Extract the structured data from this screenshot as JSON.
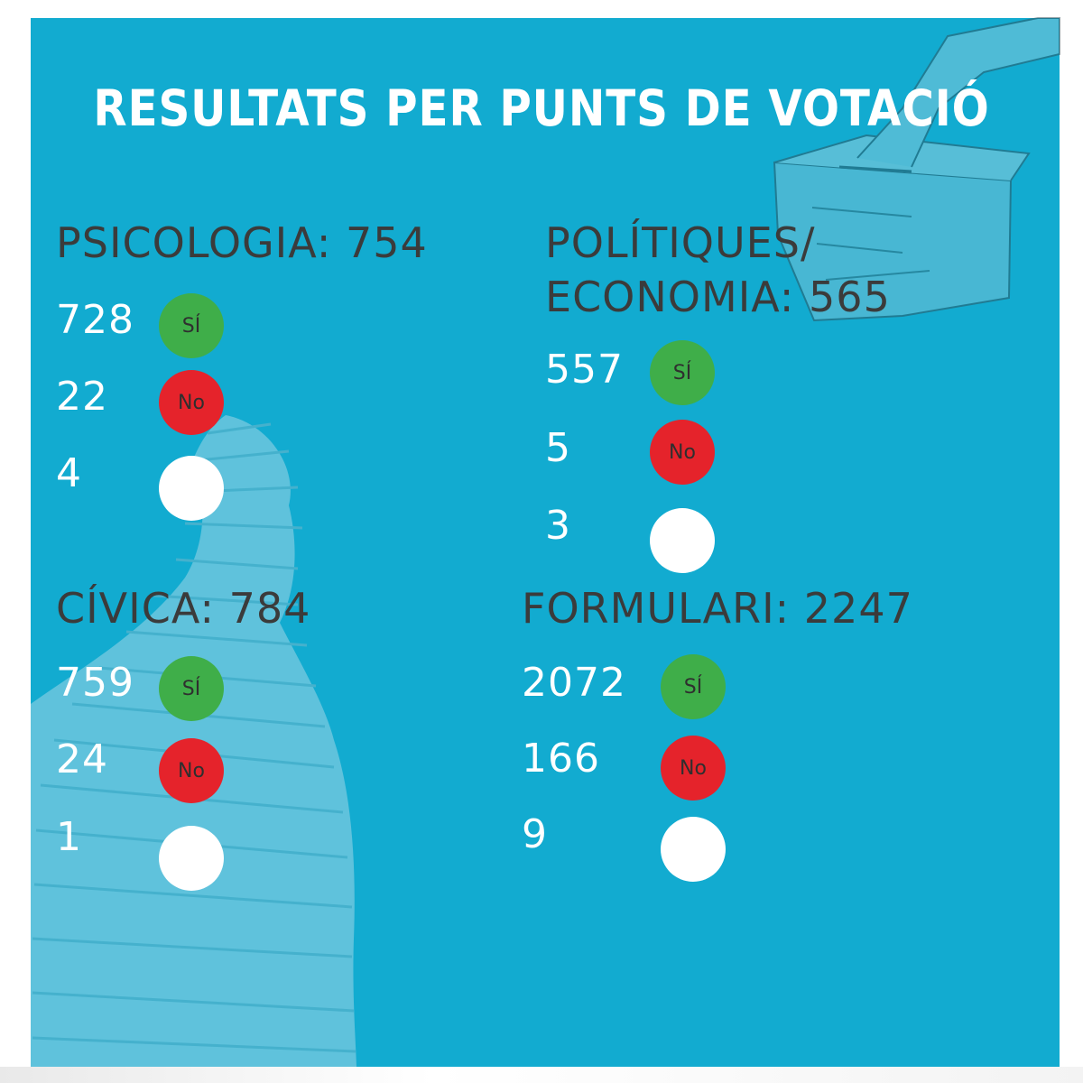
{
  "title": "RESULTATS PER PUNTS DE VOTACIÓ",
  "colors": {
    "background": "#12abd0",
    "heading": "#3b3b3b",
    "si": "#3fae49",
    "no": "#e5232b",
    "blank": "#ffffff"
  },
  "sections": [
    {
      "heading_lines": [
        "PSICOLOGIA: 754"
      ],
      "results": [
        {
          "count": "728",
          "label": "SÍ"
        },
        {
          "count": "22",
          "label": "No"
        },
        {
          "count": "4",
          "label": ""
        }
      ]
    },
    {
      "heading_lines": [
        "POLÍTIQUES/",
        "ECONOMIA: 565"
      ],
      "results": [
        {
          "count": "557",
          "label": "SÍ"
        },
        {
          "count": "5",
          "label": "No"
        },
        {
          "count": "3",
          "label": ""
        }
      ]
    },
    {
      "heading_lines": [
        "CÍVICA: 784"
      ],
      "results": [
        {
          "count": "759",
          "label": "SÍ"
        },
        {
          "count": "24",
          "label": "No"
        },
        {
          "count": "1",
          "label": ""
        }
      ]
    },
    {
      "heading_lines": [
        "FORMULARI: 2247"
      ],
      "results": [
        {
          "count": "2072",
          "label": "SÍ"
        },
        {
          "count": "166",
          "label": "No"
        },
        {
          "count": "9",
          "label": ""
        }
      ]
    }
  ]
}
